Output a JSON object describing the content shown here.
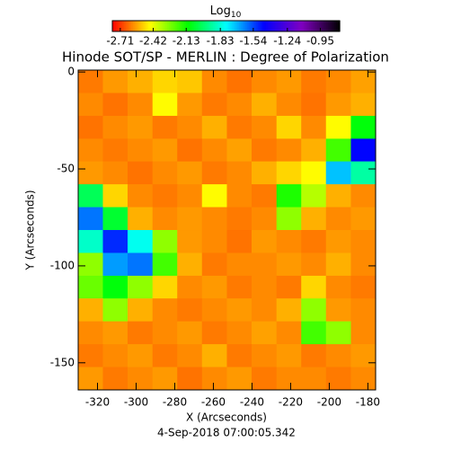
{
  "chart_data": {
    "type": "heatmap",
    "title": "Hinode SOT/SP - MERLIN : Degree of Polarization",
    "subtitle": "4-Sep-2018 07:00:05.342",
    "x_label": "X (Arcseconds)",
    "y_label": "Y (Arcseconds)",
    "colorbar_label": {
      "base": "Log",
      "sub": "10"
    },
    "colormap": [
      "#ff0000",
      "#ffff00",
      "#00ff00",
      "#00ffff",
      "#0000ff",
      "#8000c0",
      "#000000"
    ],
    "colorlim": [
      -2.78,
      -0.78
    ],
    "colorbar_ticks": [
      -2.71,
      -2.42,
      -2.13,
      -1.83,
      -1.54,
      -1.24,
      -0.95
    ],
    "xlim": [
      -330,
      -176
    ],
    "ylim": [
      -164,
      1
    ],
    "xticks": [
      -320,
      -300,
      -280,
      -260,
      -240,
      -220,
      -200,
      -180
    ],
    "yticks": [
      0,
      -50,
      -100,
      -150
    ],
    "x": [
      -323.6,
      -310.8,
      -298,
      -285.1,
      -272.3,
      -259.5,
      -246.6,
      -233.8,
      -220.9,
      -208.1,
      -195.3,
      -182.4
    ],
    "y": [
      -4.9,
      -16.7,
      -28.5,
      -40.3,
      -52,
      -63.8,
      -75.6,
      -87.4,
      -99.2,
      -111,
      -122.7,
      -134.5,
      -146.3,
      -158.1
    ],
    "z": [
      [
        -2.62,
        -2.58,
        -2.55,
        -2.5,
        -2.52,
        -2.6,
        -2.63,
        -2.6,
        -2.58,
        -2.62,
        -2.6,
        -2.57
      ],
      [
        -2.6,
        -2.63,
        -2.6,
        -2.45,
        -2.58,
        -2.62,
        -2.6,
        -2.55,
        -2.6,
        -2.63,
        -2.58,
        -2.55
      ],
      [
        -2.63,
        -2.6,
        -2.58,
        -2.62,
        -2.6,
        -2.55,
        -2.62,
        -2.6,
        -2.5,
        -2.6,
        -2.45,
        -2.1
      ],
      [
        -2.6,
        -2.62,
        -2.6,
        -2.58,
        -2.63,
        -2.6,
        -2.57,
        -2.62,
        -2.6,
        -2.55,
        -2.2,
        -1.45
      ],
      [
        -2.58,
        -2.6,
        -2.63,
        -2.6,
        -2.58,
        -2.62,
        -2.6,
        -2.55,
        -2.5,
        -2.45,
        -1.7,
        -1.9
      ],
      [
        -2.0,
        -2.5,
        -2.6,
        -2.62,
        -2.6,
        -2.45,
        -2.6,
        -2.62,
        -2.15,
        -2.35,
        -2.55,
        -2.6
      ],
      [
        -1.6,
        -2.05,
        -2.55,
        -2.6,
        -2.58,
        -2.6,
        -2.62,
        -2.6,
        -2.3,
        -2.55,
        -2.6,
        -2.58
      ],
      [
        -1.85,
        -1.5,
        -1.8,
        -2.3,
        -2.58,
        -2.6,
        -2.63,
        -2.58,
        -2.6,
        -2.62,
        -2.58,
        -2.6
      ],
      [
        -2.3,
        -1.65,
        -1.6,
        -2.2,
        -2.55,
        -2.62,
        -2.6,
        -2.6,
        -2.58,
        -2.6,
        -2.55,
        -2.6
      ],
      [
        -2.25,
        -2.1,
        -2.3,
        -2.5,
        -2.6,
        -2.58,
        -2.62,
        -2.6,
        -2.62,
        -2.5,
        -2.6,
        -2.62
      ],
      [
        -2.55,
        -2.3,
        -2.55,
        -2.6,
        -2.62,
        -2.6,
        -2.58,
        -2.6,
        -2.55,
        -2.3,
        -2.58,
        -2.6
      ],
      [
        -2.6,
        -2.58,
        -2.62,
        -2.6,
        -2.58,
        -2.62,
        -2.6,
        -2.57,
        -2.6,
        -2.2,
        -2.3,
        -2.6
      ],
      [
        -2.62,
        -2.6,
        -2.58,
        -2.62,
        -2.6,
        -2.55,
        -2.62,
        -2.6,
        -2.58,
        -2.62,
        -2.6,
        -2.58
      ],
      [
        -2.58,
        -2.62,
        -2.6,
        -2.58,
        -2.63,
        -2.6,
        -2.58,
        -2.62,
        -2.6,
        -2.6,
        -2.62,
        -2.6
      ]
    ]
  }
}
